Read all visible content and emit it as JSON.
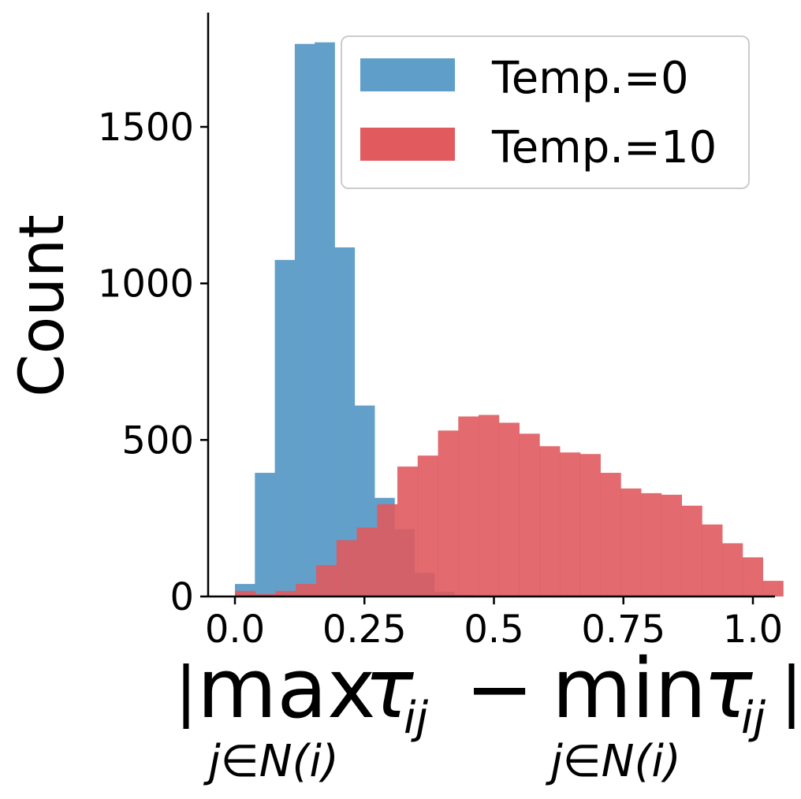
{
  "chart_data": {
    "type": "histogram",
    "xlabel": {
      "term1": {
        "func": "max",
        "var": "τ",
        "sub": "ij",
        "limit": "j∈N(i)"
      },
      "operator": "−",
      "term2": {
        "func": "min",
        "var": "τ",
        "sub": "ij",
        "limit": "j∈N(i)"
      }
    },
    "ylabel": "Count",
    "xlim": [
      -0.05,
      1.04
    ],
    "ylim": [
      0,
      1870
    ],
    "xticks": [
      0.0,
      0.25,
      0.5,
      0.75,
      1.0
    ],
    "xtick_labels": [
      "0.0",
      "0.25",
      "0.5",
      "0.75",
      "1.0"
    ],
    "yticks": [
      0,
      500,
      1000,
      1500
    ],
    "ytick_labels": [
      "0",
      "500",
      "1000",
      "1500"
    ],
    "grid": false,
    "legend_position": "top-right",
    "series": [
      {
        "name": "Temp.=0",
        "color": "#5f9ec9",
        "bin_start": 0.0,
        "bin_width": 0.0385,
        "counts": [
          40,
          395,
          1075,
          1765,
          1770,
          1115,
          610,
          315,
          215,
          75,
          15,
          5
        ]
      },
      {
        "name": "Temp.=10",
        "color": "#e05a5e",
        "bin_start": 0.0,
        "bin_width": 0.0392,
        "counts": [
          18,
          8,
          18,
          40,
          100,
          180,
          220,
          295,
          415,
          450,
          530,
          575,
          580,
          555,
          520,
          480,
          460,
          455,
          395,
          345,
          330,
          325,
          290,
          230,
          170,
          125,
          50
        ]
      }
    ]
  }
}
